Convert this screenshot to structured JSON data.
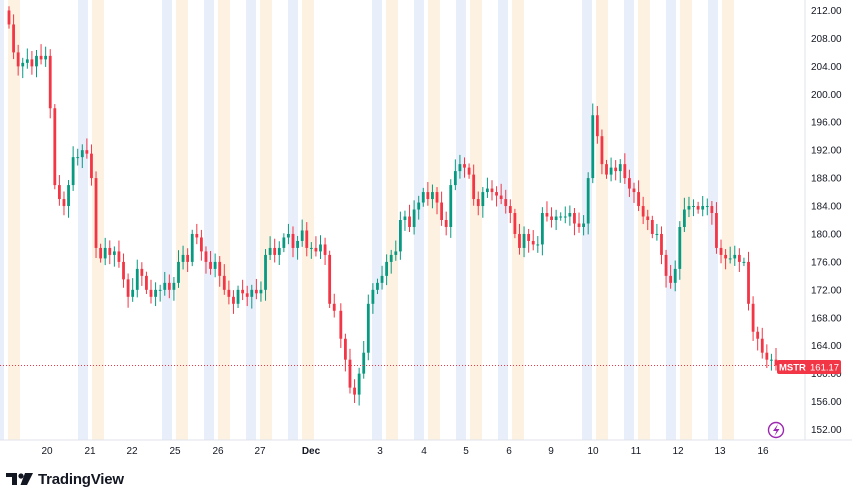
{
  "chart_data": {
    "type": "candlestick",
    "symbol": "MSTR",
    "last_price": "161.17",
    "y_range": [
      150.5,
      213.5
    ],
    "price_ticks": [
      "212.00",
      "208.00",
      "204.00",
      "200.00",
      "196.00",
      "192.00",
      "188.00",
      "184.00",
      "180.00",
      "176.00",
      "172.00",
      "168.00",
      "164.00",
      "160.00",
      "156.00",
      "152.00"
    ],
    "date_labels": [
      {
        "label": "20",
        "bold": false
      },
      {
        "label": "21",
        "bold": false
      },
      {
        "label": "22",
        "bold": false
      },
      {
        "label": "25",
        "bold": false
      },
      {
        "label": "26",
        "bold": false
      },
      {
        "label": "27",
        "bold": false
      },
      {
        "label": "Dec",
        "bold": true
      },
      {
        "label": "3",
        "bold": false
      },
      {
        "label": "4",
        "bold": false
      },
      {
        "label": "5",
        "bold": false
      },
      {
        "label": "6",
        "bold": false
      },
      {
        "label": "9",
        "bold": false
      },
      {
        "label": "10",
        "bold": false
      },
      {
        "label": "11",
        "bold": false
      },
      {
        "label": "12",
        "bold": false
      },
      {
        "label": "13",
        "bold": false
      },
      {
        "label": "16",
        "bold": false
      }
    ],
    "closes": [
      210,
      206,
      204,
      204.5,
      205,
      204,
      205.5,
      205,
      205.5,
      198,
      187,
      185,
      184,
      187,
      191,
      191,
      192,
      191.5,
      188,
      178,
      176.5,
      178,
      177,
      177.5,
      176,
      173.5,
      171,
      172,
      175,
      174,
      172,
      171,
      172,
      172,
      173,
      172,
      173,
      176,
      177,
      176,
      180,
      179.5,
      177.5,
      176,
      175,
      176,
      174,
      172,
      171,
      170,
      172,
      171.5,
      171,
      172,
      171.5,
      172,
      177,
      178,
      177,
      178,
      179.5,
      180,
      178,
      179,
      180.5,
      178,
      178,
      177.5,
      178.5,
      177,
      170,
      169,
      165,
      162,
      158,
      157,
      160,
      163,
      170,
      172,
      173,
      174,
      176,
      177,
      177.5,
      182,
      182.5,
      181,
      183.5,
      184.5,
      186,
      185,
      186,
      184.5,
      182,
      181,
      187,
      189,
      190,
      189.5,
      188.5,
      185,
      184,
      186,
      186.5,
      186,
      185.5,
      185,
      184,
      183,
      180,
      178,
      180,
      179,
      178.5,
      178.5,
      183,
      182.5,
      182,
      182.5,
      182.5,
      182.5,
      183,
      181.5,
      181,
      181.5,
      188,
      197,
      194,
      190,
      188.5,
      189.5,
      189,
      190,
      188,
      186.5,
      186,
      184,
      182.5,
      182,
      180,
      180,
      177,
      174,
      173,
      175,
      181,
      183.5,
      184,
      184,
      183.5,
      184,
      184,
      183,
      178,
      177,
      176.5,
      176.5,
      177,
      176,
      176,
      170,
      166,
      165,
      163,
      162,
      162,
      161.17
    ]
  },
  "logo": {
    "text": "TradingView"
  }
}
